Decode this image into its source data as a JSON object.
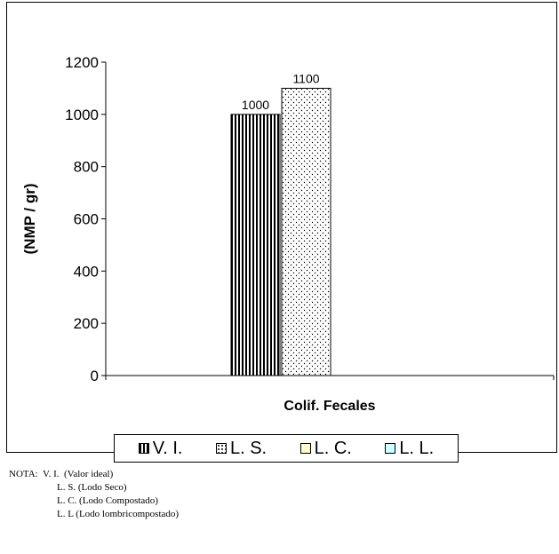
{
  "chart_data": {
    "type": "bar",
    "categories": [
      "Colif. Fecales"
    ],
    "xlabel": "Colif. Fecales",
    "ylabel": "(NMP / gr)",
    "ylim": [
      0,
      1200
    ],
    "yticks": [
      0,
      200,
      400,
      600,
      800,
      1000,
      1200
    ],
    "grid": false,
    "legend_position": "bottom",
    "series": [
      {
        "name": "V. I.",
        "values": [
          1000
        ],
        "pattern": "vertical-stripes",
        "color": "#000000"
      },
      {
        "name": "L. S.",
        "values": [
          1100
        ],
        "pattern": "dots",
        "color": "#ffffff"
      },
      {
        "name": "L. C.",
        "values": [
          null
        ],
        "pattern": "solid",
        "color": "#ffffcc"
      },
      {
        "name": "L. L.",
        "values": [
          null
        ],
        "pattern": "solid",
        "color": "#ccffff"
      }
    ],
    "data_labels": [
      "1000",
      "1100"
    ]
  },
  "legend": {
    "items": [
      {
        "label": "V. I."
      },
      {
        "label": "L. S."
      },
      {
        "label": "L. C."
      },
      {
        "label": "L. L."
      }
    ]
  },
  "note": {
    "prefix": "NOTA:",
    "lines": [
      "V. I.  (Valor ideal)",
      "L. S. (Lodo Seco)",
      "L. C. (Lodo Compostado)",
      "L. L (Lodo lombricompostado)"
    ]
  }
}
